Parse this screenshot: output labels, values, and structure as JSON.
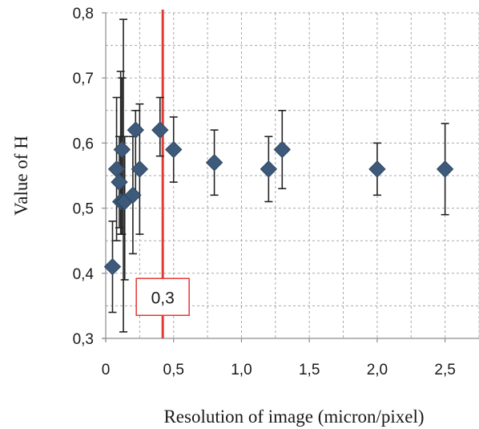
{
  "chart_data": {
    "type": "scatter",
    "xlabel": "Resolution of image (micron/pixel)",
    "ylabel": "Value of H",
    "xlim": [
      0,
      2.75
    ],
    "ylim": [
      0.3,
      0.8
    ],
    "x_ticks": [
      {
        "value": 0,
        "label": "0"
      },
      {
        "value": 0.5,
        "label": "0,5"
      },
      {
        "value": 1.0,
        "label": "1,0"
      },
      {
        "value": 1.5,
        "label": "1,5"
      },
      {
        "value": 2.0,
        "label": "2,0"
      },
      {
        "value": 2.5,
        "label": "2,5"
      }
    ],
    "y_ticks": [
      {
        "value": 0.3,
        "label": "0,3"
      },
      {
        "value": 0.4,
        "label": "0,4"
      },
      {
        "value": 0.5,
        "label": "0,5"
      },
      {
        "value": 0.6,
        "label": "0,6"
      },
      {
        "value": 0.7,
        "label": "0,7"
      },
      {
        "value": 0.8,
        "label": "0,8"
      }
    ],
    "grid": true,
    "marker": "diamond",
    "marker_color": "#3d5a7a",
    "points": [
      {
        "x": 0.05,
        "y": 0.41,
        "err_low": 0.34,
        "err_high": 0.48
      },
      {
        "x": 0.08,
        "y": 0.56,
        "err_low": 0.45,
        "err_high": 0.67
      },
      {
        "x": 0.1,
        "y": 0.54,
        "err_low": 0.47,
        "err_high": 0.61
      },
      {
        "x": 0.11,
        "y": 0.51,
        "err_low": 0.46,
        "err_high": 0.71
      },
      {
        "x": 0.12,
        "y": 0.59,
        "err_low": 0.46,
        "err_high": 0.7
      },
      {
        "x": 0.13,
        "y": 0.51,
        "err_low": 0.31,
        "err_high": 0.79
      },
      {
        "x": 0.14,
        "y": 0.51,
        "err_low": 0.39,
        "err_high": 0.61
      },
      {
        "x": 0.2,
        "y": 0.52,
        "err_low": 0.43,
        "err_high": 0.61
      },
      {
        "x": 0.22,
        "y": 0.62,
        "err_low": 0.52,
        "err_high": 0.65
      },
      {
        "x": 0.25,
        "y": 0.56,
        "err_low": 0.46,
        "err_high": 0.66
      },
      {
        "x": 0.4,
        "y": 0.62,
        "err_low": 0.58,
        "err_high": 0.67
      },
      {
        "x": 0.5,
        "y": 0.59,
        "err_low": 0.54,
        "err_high": 0.64
      },
      {
        "x": 0.8,
        "y": 0.57,
        "err_low": 0.52,
        "err_high": 0.62
      },
      {
        "x": 1.2,
        "y": 0.56,
        "err_low": 0.51,
        "err_high": 0.61
      },
      {
        "x": 1.3,
        "y": 0.59,
        "err_low": 0.53,
        "err_high": 0.65
      },
      {
        "x": 2.0,
        "y": 0.56,
        "err_low": 0.52,
        "err_high": 0.6
      },
      {
        "x": 2.5,
        "y": 0.56,
        "err_low": 0.49,
        "err_high": 0.63
      }
    ],
    "reference_line": {
      "x": 0.42,
      "color": "#e53935",
      "label": "0,3",
      "label_y": 0.36
    }
  }
}
